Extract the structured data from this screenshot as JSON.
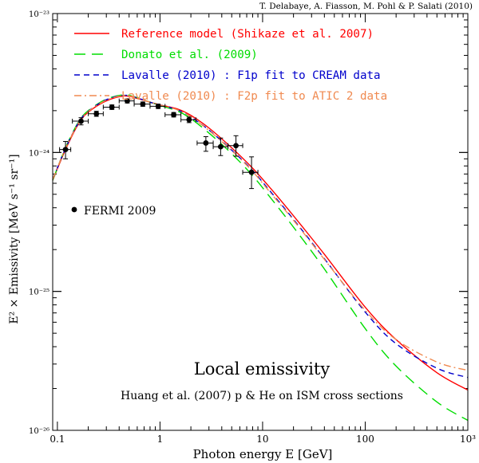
{
  "chart_data": {
    "type": "line",
    "credit": "T. Delabaye, A. Fiasson, M. Pohl & P. Salati (2010)",
    "xlabel": "Photon energy E  [GeV]",
    "ylabel": "E² × Emissivity [MeV s⁻¹ sr⁻¹]",
    "xscale": "log",
    "yscale": "log",
    "xlim": [
      0.09,
      1000
    ],
    "ylim": [
      1e-26,
      1e-23
    ],
    "x_ticks": [
      {
        "value": 0.1,
        "label": "0.1"
      },
      {
        "value": 1,
        "label": "1"
      },
      {
        "value": 10,
        "label": "10"
      },
      {
        "value": 100,
        "label": "100"
      },
      {
        "value": 1000,
        "label": "10³"
      }
    ],
    "y_ticks": [
      {
        "value": 1e-26,
        "label": "10⁻²⁶"
      },
      {
        "value": 1e-25,
        "label": "10⁻²⁵"
      },
      {
        "value": 1e-24,
        "label": "10⁻²⁴"
      },
      {
        "value": 1e-23,
        "label": "10⁻²³"
      }
    ],
    "annotation_title": "Local emissivity",
    "annotation_subtitle": "Huang et al. (2007) p & He on ISM cross sections",
    "legend_placement": "top-left",
    "series": [
      {
        "name": "Reference model (Shikaze et al. 2007)",
        "color": "#ff0000",
        "dash": "solid",
        "x": [
          0.09,
          0.12,
          0.16,
          0.2,
          0.3,
          0.45,
          0.6,
          0.8,
          1.0,
          1.5,
          2,
          3,
          5,
          8,
          12,
          20,
          40,
          100,
          200,
          500,
          1000
        ],
        "y": [
          6.3e-25,
          1.05e-24,
          1.6e-24,
          1.95e-24,
          2.35e-24,
          2.55e-24,
          2.45e-24,
          2.3e-24,
          2.2e-24,
          2.05e-24,
          1.85e-24,
          1.5e-24,
          1.08e-24,
          7.7e-25,
          5.5e-25,
          3.5e-25,
          1.85e-25,
          7.7e-26,
          4.5e-26,
          2.6e-26,
          1.95e-26
        ]
      },
      {
        "name": "Donato et al. (2009)",
        "color": "#00dd00",
        "dash": "long",
        "x": [
          0.09,
          0.12,
          0.16,
          0.2,
          0.3,
          0.45,
          0.6,
          0.8,
          1.0,
          1.5,
          2,
          3,
          5,
          8,
          12,
          20,
          40,
          100,
          200,
          500,
          1000
        ],
        "y": [
          6.3e-25,
          1.08e-24,
          1.65e-24,
          2e-24,
          2.42e-24,
          2.6e-24,
          2.48e-24,
          2.3e-24,
          2.18e-24,
          1.98e-24,
          1.75e-24,
          1.38e-24,
          9.8e-25,
          6.8e-25,
          4.7e-25,
          2.9e-25,
          1.45e-25,
          5.4e-26,
          2.9e-26,
          1.6e-26,
          1.18e-26
        ]
      },
      {
        "name": "Lavalle (2010) : F1p fit to CREAM data",
        "color": "#0000cc",
        "dash": "short",
        "x": [
          0.09,
          0.12,
          0.16,
          0.2,
          0.3,
          0.45,
          0.6,
          0.8,
          1.0,
          1.5,
          2,
          3,
          5,
          8,
          12,
          20,
          40,
          100,
          200,
          500,
          1000
        ],
        "y": [
          6.4e-25,
          1.07e-24,
          1.63e-24,
          1.98e-24,
          2.4e-24,
          2.58e-24,
          2.47e-24,
          2.3e-24,
          2.2e-24,
          2.02e-24,
          1.8e-24,
          1.45e-24,
          1.04e-24,
          7.4e-25,
          5.2e-25,
          3.3e-25,
          1.72e-25,
          7.1e-26,
          4.2e-26,
          2.8e-26,
          2.4e-26
        ]
      },
      {
        "name": "Lavalle (2010) : F2p fit to ATIC 2 data",
        "color": "#f08a50",
        "dash": "dashdot",
        "x": [
          0.09,
          0.12,
          0.16,
          0.2,
          0.3,
          0.45,
          0.6,
          0.8,
          1.0,
          1.5,
          2,
          3,
          5,
          8,
          12,
          20,
          40,
          100,
          200,
          500,
          1000
        ],
        "y": [
          6.4e-25,
          1.07e-24,
          1.62e-24,
          1.97e-24,
          2.38e-24,
          2.57e-24,
          2.46e-24,
          2.3e-24,
          2.2e-24,
          2.02e-24,
          1.8e-24,
          1.44e-24,
          1.03e-24,
          7.3e-25,
          5.1e-25,
          3.25e-25,
          1.7e-25,
          7.3e-26,
          4.5e-26,
          3.1e-26,
          2.7e-26
        ]
      }
    ],
    "data_points": {
      "name": "FERMI 2009",
      "color": "#000000",
      "points": [
        {
          "x": 0.12,
          "y": 1.05e-24,
          "xlo": 0.105,
          "xhi": 0.135,
          "ylo": 9e-25,
          "yhi": 1.2e-24
        },
        {
          "x": 0.17,
          "y": 1.68e-24,
          "xlo": 0.14,
          "xhi": 0.2,
          "ylo": 1.58e-24,
          "yhi": 1.78e-24
        },
        {
          "x": 0.24,
          "y": 1.9e-24,
          "xlo": 0.2,
          "xhi": 0.28,
          "ylo": 1.82e-24,
          "yhi": 1.98e-24
        },
        {
          "x": 0.34,
          "y": 2.12e-24,
          "xlo": 0.28,
          "xhi": 0.4,
          "ylo": 2.04e-24,
          "yhi": 2.2e-24
        },
        {
          "x": 0.48,
          "y": 2.35e-24,
          "xlo": 0.4,
          "xhi": 0.56,
          "ylo": 2.27e-24,
          "yhi": 2.43e-24
        },
        {
          "x": 0.68,
          "y": 2.23e-24,
          "xlo": 0.56,
          "xhi": 0.8,
          "ylo": 2.15e-24,
          "yhi": 2.31e-24
        },
        {
          "x": 0.96,
          "y": 2.15e-24,
          "xlo": 0.8,
          "xhi": 1.12,
          "ylo": 2.07e-24,
          "yhi": 2.23e-24
        },
        {
          "x": 1.36,
          "y": 1.87e-24,
          "xlo": 1.12,
          "xhi": 1.6,
          "ylo": 1.8e-24,
          "yhi": 1.94e-24
        },
        {
          "x": 1.92,
          "y": 1.72e-24,
          "xlo": 1.6,
          "xhi": 2.24,
          "ylo": 1.64e-24,
          "yhi": 1.8e-24
        },
        {
          "x": 2.8,
          "y": 1.17e-24,
          "xlo": 2.3,
          "xhi": 3.3,
          "ylo": 1.02e-24,
          "yhi": 1.3e-24
        },
        {
          "x": 3.9,
          "y": 1.1e-24,
          "xlo": 3.3,
          "xhi": 4.6,
          "ylo": 9.5e-25,
          "yhi": 1.27e-24
        },
        {
          "x": 5.5,
          "y": 1.12e-24,
          "xlo": 4.6,
          "xhi": 6.4,
          "ylo": 9.4e-25,
          "yhi": 1.32e-24
        },
        {
          "x": 7.8,
          "y": 7.2e-25,
          "xlo": 6.4,
          "xhi": 9.0,
          "ylo": 5.5e-25,
          "yhi": 9.3e-25
        }
      ]
    }
  }
}
